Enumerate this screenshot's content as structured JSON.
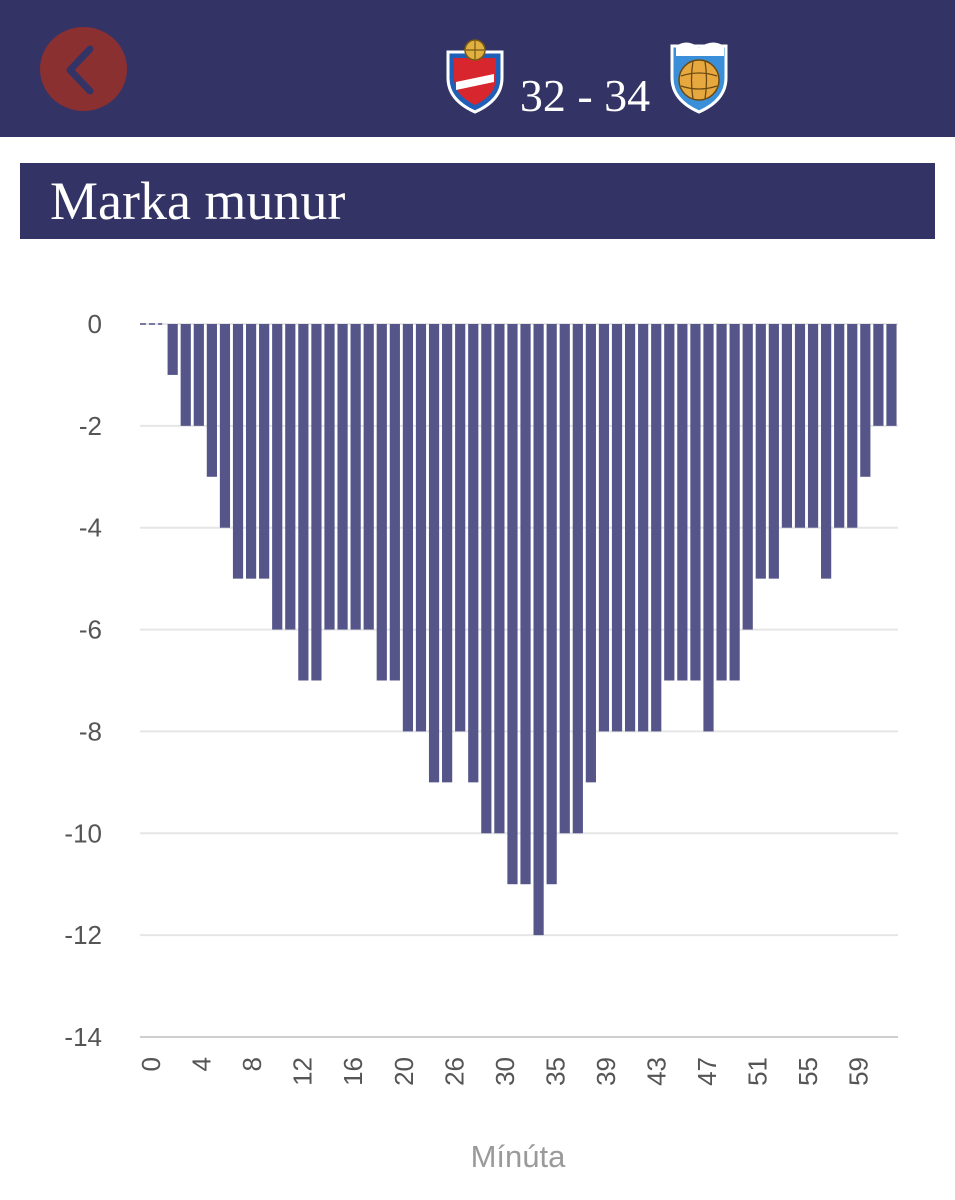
{
  "header": {
    "score": "32 - 34",
    "home_team_icon": "haukar-crest-icon",
    "away_team_icon": "fram-crest-icon",
    "back_icon": "chevron-left-icon"
  },
  "colors": {
    "bar_color": "#333366",
    "accent_back": "#8b3030",
    "bar_fill": "#55558a"
  },
  "section": {
    "title": "Marka munur"
  },
  "chart_data": {
    "type": "bar",
    "xlabel": "Mínúta",
    "ylabel": "",
    "ylim": [
      -14,
      0
    ],
    "yticks": [
      0,
      -2,
      -4,
      -6,
      -8,
      -10,
      -12,
      -14
    ],
    "xtick_labels": [
      "0",
      "4",
      "8",
      "12",
      "16",
      "20",
      "26",
      "30",
      "35",
      "39",
      "43",
      "47",
      "51",
      "55",
      "59"
    ],
    "grid": true,
    "values": [
      0,
      0,
      -1,
      -2,
      -2,
      -3,
      -4,
      -5,
      -5,
      -5,
      -6,
      -6,
      -7,
      -7,
      -6,
      -6,
      -6,
      -6,
      -7,
      -7,
      -8,
      -8,
      -9,
      -9,
      -8,
      -9,
      -10,
      -10,
      -11,
      -11,
      -12,
      -11,
      -10,
      -10,
      -9,
      -8,
      -8,
      -8,
      -8,
      -8,
      -7,
      -7,
      -7,
      -8,
      -7,
      -7,
      -6,
      -5,
      -5,
      -4,
      -4,
      -4,
      -5,
      -4,
      -4,
      -3,
      -2,
      -2
    ]
  }
}
